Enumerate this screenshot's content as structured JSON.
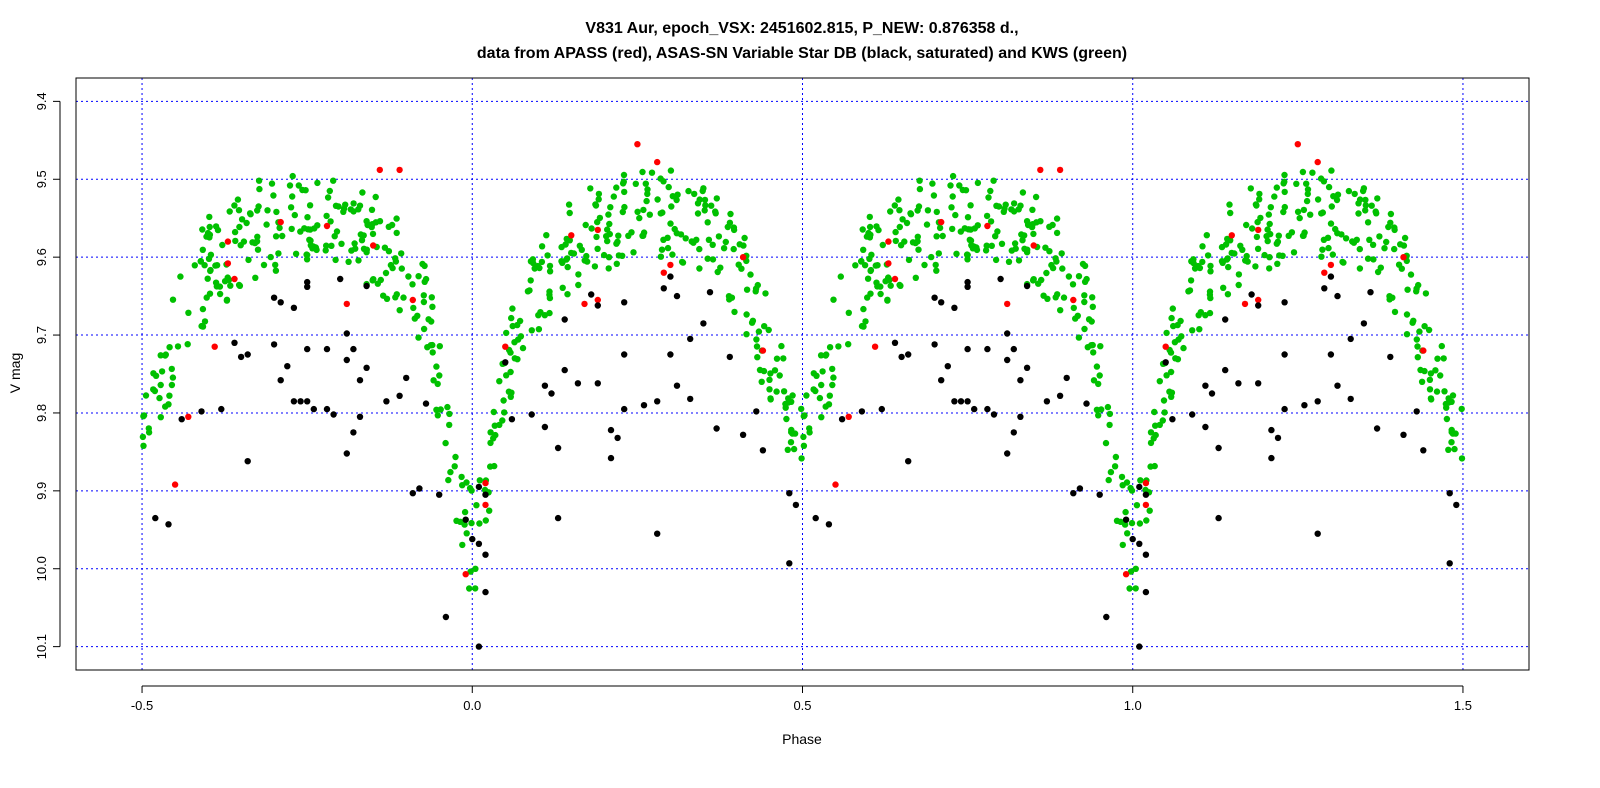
{
  "chart_data": {
    "type": "scatter",
    "title": "V831 Aur, epoch_VSX: 2451602.815, P_NEW: 0.876358 d.,",
    "subtitle": "data from APASS (red), ASAS-SN Variable Star DB (black, saturated) and KWS (green)",
    "xlabel": "Phase",
    "ylabel": "V mag",
    "xlim": [
      -0.6,
      1.6
    ],
    "ylim": [
      10.13,
      9.37
    ],
    "y_inverted": true,
    "x_ticks": [
      -0.5,
      0.0,
      0.5,
      1.0,
      1.5
    ],
    "x_tick_labels": [
      "-0.5",
      "0.0",
      "0.5",
      "1.0",
      "1.5"
    ],
    "y_ticks": [
      9.4,
      9.5,
      9.6,
      9.7,
      9.8,
      9.9,
      10.0,
      10.1
    ],
    "y_tick_labels": [
      "9.4",
      "9.5",
      "9.6",
      "9.7",
      "9.8",
      "9.9",
      "10.0",
      "10.1"
    ],
    "grid": true,
    "grid_color": "#0000ff",
    "phase_repeat": 1.0,
    "series": [
      {
        "color": "#ff0000",
        "points": [
          [
            0.25,
            9.455
          ],
          [
            0.28,
            9.478
          ],
          [
            -0.14,
            9.488
          ],
          [
            -0.11,
            9.488
          ],
          [
            -0.29,
            9.555
          ],
          [
            -0.22,
            9.56
          ],
          [
            0.15,
            9.572
          ],
          [
            0.19,
            9.565
          ],
          [
            -0.37,
            9.58
          ],
          [
            -0.15,
            9.585
          ],
          [
            -0.37,
            9.608
          ],
          [
            -0.36,
            9.628
          ],
          [
            -0.09,
            9.655
          ],
          [
            -0.19,
            9.66
          ],
          [
            0.29,
            9.62
          ],
          [
            0.3,
            9.61
          ],
          [
            0.17,
            9.66
          ],
          [
            0.19,
            9.655
          ],
          [
            0.41,
            9.6
          ],
          [
            -0.39,
            9.715
          ],
          [
            0.05,
            9.715
          ],
          [
            0.44,
            9.72
          ],
          [
            -0.43,
            9.805
          ],
          [
            -0.45,
            9.892
          ],
          [
            0.02,
            9.89
          ],
          [
            0.02,
            9.918
          ],
          [
            -0.01,
            10.007
          ]
        ]
      },
      {
        "color": "#000000",
        "points": [
          [
            -0.34,
            9.862
          ],
          [
            -0.44,
            9.808
          ],
          [
            -0.41,
            9.798
          ],
          [
            -0.38,
            9.795
          ],
          [
            -0.48,
            9.935
          ],
          [
            -0.46,
            9.943
          ],
          [
            -0.36,
            9.71
          ],
          [
            -0.35,
            9.728
          ],
          [
            -0.34,
            9.725
          ],
          [
            -0.3,
            9.712
          ],
          [
            -0.28,
            9.74
          ],
          [
            -0.29,
            9.758
          ],
          [
            -0.27,
            9.785
          ],
          [
            -0.26,
            9.785
          ],
          [
            -0.25,
            9.785
          ],
          [
            -0.22,
            9.795
          ],
          [
            -0.21,
            9.802
          ],
          [
            -0.24,
            9.795
          ],
          [
            -0.3,
            9.652
          ],
          [
            -0.29,
            9.658
          ],
          [
            -0.27,
            9.665
          ],
          [
            -0.25,
            9.632
          ],
          [
            -0.25,
            9.638
          ],
          [
            -0.2,
            9.628
          ],
          [
            -0.19,
            9.698
          ],
          [
            -0.18,
            9.718
          ],
          [
            -0.16,
            9.742
          ],
          [
            -0.19,
            9.732
          ],
          [
            -0.22,
            9.718
          ],
          [
            -0.25,
            9.718
          ],
          [
            -0.17,
            9.758
          ],
          [
            -0.13,
            9.785
          ],
          [
            -0.11,
            9.778
          ],
          [
            -0.07,
            9.788
          ],
          [
            -0.1,
            9.755
          ],
          [
            -0.16,
            9.637
          ],
          [
            -0.19,
            9.852
          ],
          [
            -0.18,
            9.825
          ],
          [
            -0.17,
            9.805
          ],
          [
            -0.09,
            9.903
          ],
          [
            -0.08,
            9.897
          ],
          [
            -0.05,
            9.905
          ],
          [
            -0.01,
            9.937
          ],
          [
            0.0,
            9.962
          ],
          [
            0.01,
            9.968
          ],
          [
            0.02,
            9.982
          ],
          [
            0.02,
            10.03
          ],
          [
            0.01,
            10.1
          ],
          [
            -0.04,
            10.062
          ],
          [
            0.13,
            9.935
          ],
          [
            0.11,
            9.818
          ],
          [
            0.09,
            9.802
          ],
          [
            0.14,
            9.745
          ],
          [
            0.16,
            9.762
          ],
          [
            0.19,
            9.762
          ],
          [
            0.23,
            9.725
          ],
          [
            0.22,
            9.832
          ],
          [
            0.21,
            9.822
          ],
          [
            0.21,
            9.858
          ],
          [
            0.23,
            9.795
          ],
          [
            0.26,
            9.79
          ],
          [
            0.28,
            9.785
          ],
          [
            0.31,
            9.765
          ],
          [
            0.33,
            9.782
          ],
          [
            0.3,
            9.725
          ],
          [
            0.33,
            9.705
          ],
          [
            0.35,
            9.685
          ],
          [
            0.36,
            9.645
          ],
          [
            0.37,
            9.82
          ],
          [
            0.39,
            9.728
          ],
          [
            0.41,
            9.828
          ],
          [
            0.43,
            9.798
          ],
          [
            0.44,
            9.848
          ],
          [
            0.48,
            9.903
          ],
          [
            0.49,
            9.918
          ],
          [
            0.48,
            9.993
          ],
          [
            0.28,
            9.955
          ],
          [
            0.18,
            9.648
          ],
          [
            0.19,
            9.662
          ],
          [
            0.23,
            9.658
          ],
          [
            0.14,
            9.68
          ],
          [
            0.11,
            9.765
          ],
          [
            0.12,
            9.775
          ],
          [
            0.06,
            9.808
          ],
          [
            0.05,
            9.735
          ],
          [
            0.01,
            9.895
          ],
          [
            0.02,
            9.905
          ],
          [
            0.13,
            9.845
          ],
          [
            0.31,
            9.65
          ],
          [
            0.29,
            9.64
          ],
          [
            0.3,
            9.625
          ]
        ]
      },
      {
        "color": "#00c000",
        "generated": true,
        "band_top": [
          [
            -0.5,
            9.79
          ],
          [
            -0.47,
            9.68
          ],
          [
            -0.44,
            9.6
          ],
          [
            -0.4,
            9.545
          ],
          [
            -0.35,
            9.51
          ],
          [
            -0.3,
            9.495
          ],
          [
            -0.25,
            9.49
          ],
          [
            -0.2,
            9.5
          ],
          [
            -0.15,
            9.52
          ],
          [
            -0.11,
            9.54
          ],
          [
            -0.08,
            9.58
          ],
          [
            -0.06,
            9.64
          ],
          [
            -0.04,
            9.75
          ],
          [
            -0.02,
            9.85
          ],
          [
            0.0,
            9.9
          ],
          [
            0.02,
            9.86
          ],
          [
            0.05,
            9.7
          ],
          [
            0.08,
            9.6
          ],
          [
            0.12,
            9.55
          ],
          [
            0.17,
            9.51
          ],
          [
            0.22,
            9.49
          ],
          [
            0.27,
            9.48
          ],
          [
            0.32,
            9.49
          ],
          [
            0.37,
            9.52
          ],
          [
            0.41,
            9.56
          ],
          [
            0.44,
            9.63
          ],
          [
            0.47,
            9.72
          ],
          [
            0.5,
            9.79
          ]
        ],
        "band_bottom": [
          [
            -0.5,
            9.88
          ],
          [
            -0.47,
            9.82
          ],
          [
            -0.44,
            9.75
          ],
          [
            -0.4,
            9.68
          ],
          [
            -0.35,
            9.64
          ],
          [
            -0.3,
            9.62
          ],
          [
            -0.25,
            9.61
          ],
          [
            -0.2,
            9.62
          ],
          [
            -0.15,
            9.64
          ],
          [
            -0.11,
            9.67
          ],
          [
            -0.08,
            9.71
          ],
          [
            -0.06,
            9.78
          ],
          [
            -0.04,
            9.88
          ],
          [
            -0.02,
            9.97
          ],
          [
            0.0,
            10.05
          ],
          [
            0.02,
            9.96
          ],
          [
            0.05,
            9.84
          ],
          [
            0.08,
            9.73
          ],
          [
            0.12,
            9.67
          ],
          [
            0.17,
            9.63
          ],
          [
            0.22,
            9.61
          ],
          [
            0.27,
            9.6
          ],
          [
            0.32,
            9.61
          ],
          [
            0.37,
            9.64
          ],
          [
            0.41,
            9.69
          ],
          [
            0.44,
            9.77
          ],
          [
            0.47,
            9.84
          ],
          [
            0.5,
            9.88
          ]
        ],
        "count": 520,
        "seed": 831
      }
    ]
  }
}
